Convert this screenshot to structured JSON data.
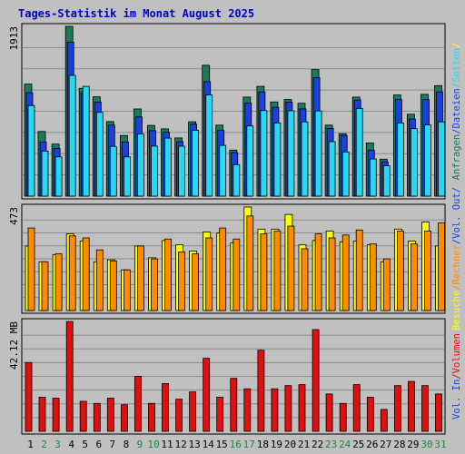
{
  "title": "Tages-Statistik im Monat August 2025",
  "colors": {
    "background": "#c0c0c0",
    "title": "#0000cc",
    "anfragen": "#1a7a5e",
    "dateien": "#1c3fe0",
    "seiten": "#28d8f2",
    "besuche": "#ffff00",
    "rechner": "#ff8c00",
    "volumen": "#e01010",
    "weekday_label": "#000000",
    "weekend_label": "#1a8a3a"
  },
  "chart_data": [
    {
      "type": "bar",
      "panel": "top",
      "y_max_label": "1913",
      "ylim": [
        0,
        1913
      ],
      "grid": true,
      "categories": [
        "1",
        "2",
        "3",
        "4",
        "5",
        "6",
        "7",
        "8",
        "9",
        "10",
        "11",
        "12",
        "13",
        "14",
        "15",
        "16",
        "17",
        "18",
        "19",
        "20",
        "21",
        "22",
        "23",
        "24",
        "25",
        "26",
        "27",
        "28",
        "29",
        "30",
        "31"
      ],
      "series": [
        {
          "name": "Anfragen",
          "values": [
            1262,
            728,
            586,
            1913,
            1214,
            1119,
            840,
            683,
            982,
            797,
            758,
            656,
            838,
            1474,
            800,
            519,
            1116,
            1237,
            1061,
            1090,
            1047,
            1426,
            800,
            704,
            1116,
            599,
            416,
            1140,
            923,
            1147,
            1245
          ]
        },
        {
          "name": "Dateien",
          "values": [
            1165,
            611,
            537,
            1735,
            1165,
            1061,
            800,
            611,
            892,
            738,
            720,
            613,
            810,
            1289,
            741,
            491,
            1050,
            1174,
            1000,
            1060,
            983,
            1335,
            762,
            683,
            1083,
            519,
            388,
            1088,
            869,
            1088,
            1174
          ]
        },
        {
          "name": "Seiten",
          "values": [
            1021,
            507,
            442,
            1361,
            1237,
            944,
            561,
            442,
            700,
            564,
            654,
            563,
            742,
            1140,
            572,
            355,
            791,
            965,
            825,
            962,
            837,
            960,
            614,
            497,
            987,
            418,
            342,
            825,
            760,
            802,
            837
          ]
        }
      ],
      "right_label": [
        {
          "text": "Anfragen",
          "color_key": "anfragen"
        },
        {
          "text": "/",
          "color_key": "dateien"
        },
        {
          "text": "Dateien",
          "color_key": "dateien"
        },
        {
          "text": "/",
          "color_key": "seiten"
        },
        {
          "text": "Seiten",
          "color_key": "seiten"
        },
        {
          "text": "/",
          "color_key": "besuche"
        }
      ]
    },
    {
      "type": "bar",
      "panel": "middle",
      "y_max_label": "473",
      "ylim": [
        0,
        473
      ],
      "grid": true,
      "categories": [
        "1",
        "2",
        "3",
        "4",
        "5",
        "6",
        "7",
        "8",
        "9",
        "10",
        "11",
        "12",
        "13",
        "14",
        "15",
        "16",
        "17",
        "18",
        "19",
        "20",
        "21",
        "22",
        "23",
        "24",
        "25",
        "26",
        "27",
        "28",
        "29",
        "30",
        "31"
      ],
      "series": [
        {
          "name": "Besuche",
          "values": [
            295,
            223,
            256,
            350,
            318,
            223,
            232,
            186,
            295,
            241,
            320,
            300,
            272,
            359,
            354,
            309,
            473,
            372,
            372,
            439,
            300,
            320,
            363,
            314,
            318,
            300,
            223,
            372,
            318,
            404,
            295
          ]
        },
        {
          "name": "Rechner",
          "values": [
            377,
            223,
            259,
            341,
            332,
            277,
            227,
            186,
            295,
            236,
            327,
            268,
            259,
            332,
            377,
            327,
            432,
            350,
            364,
            386,
            282,
            350,
            332,
            345,
            368,
            304,
            236,
            363,
            304,
            363,
            400
          ]
        }
      ],
      "right_label": [
        {
          "text": "Besuche",
          "color_key": "besuche"
        },
        {
          "text": "/",
          "color_key": "rechner"
        },
        {
          "text": "Rechner",
          "color_key": "rechner"
        },
        {
          "text": "/",
          "color_key": "dateien"
        },
        {
          "text": "Vol. Out",
          "color_key": "dateien"
        },
        {
          "text": "/",
          "color_key": "dateien"
        }
      ]
    },
    {
      "type": "bar",
      "panel": "bottom",
      "y_max_label": "42.12 MB",
      "ylim": [
        0,
        42.12
      ],
      "grid": true,
      "categories": [
        "1",
        "2",
        "3",
        "4",
        "5",
        "6",
        "7",
        "8",
        "9",
        "10",
        "11",
        "12",
        "13",
        "14",
        "15",
        "16",
        "17",
        "18",
        "19",
        "20",
        "21",
        "22",
        "23",
        "24",
        "25",
        "26",
        "27",
        "28",
        "29",
        "30",
        "31"
      ],
      "series": [
        {
          "name": "Volumen",
          "values": [
            26.4,
            13.1,
            12.7,
            42.1,
            11.5,
            10.7,
            12.7,
            10.2,
            21.1,
            10.7,
            18.3,
            12.3,
            15.1,
            28.0,
            13.1,
            20.3,
            16.3,
            31.1,
            16.3,
            17.5,
            17.9,
            39.0,
            14.3,
            10.7,
            17.9,
            13.1,
            8.4,
            17.5,
            19.1,
            17.5,
            14.3
          ]
        }
      ],
      "right_label": [
        {
          "text": "Vol. In",
          "color_key": "dateien"
        },
        {
          "text": "/",
          "color_key": "volumen"
        },
        {
          "text": "Volumen",
          "color_key": "volumen"
        }
      ]
    }
  ],
  "x_axis": {
    "days": [
      "1",
      "2",
      "3",
      "4",
      "5",
      "6",
      "7",
      "8",
      "9",
      "10",
      "11",
      "12",
      "13",
      "14",
      "15",
      "16",
      "17",
      "18",
      "19",
      "20",
      "21",
      "22",
      "23",
      "24",
      "25",
      "26",
      "27",
      "28",
      "29",
      "30",
      "31"
    ],
    "weekend_days": [
      "2",
      "3",
      "9",
      "10",
      "16",
      "17",
      "23",
      "24",
      "30",
      "31"
    ]
  }
}
